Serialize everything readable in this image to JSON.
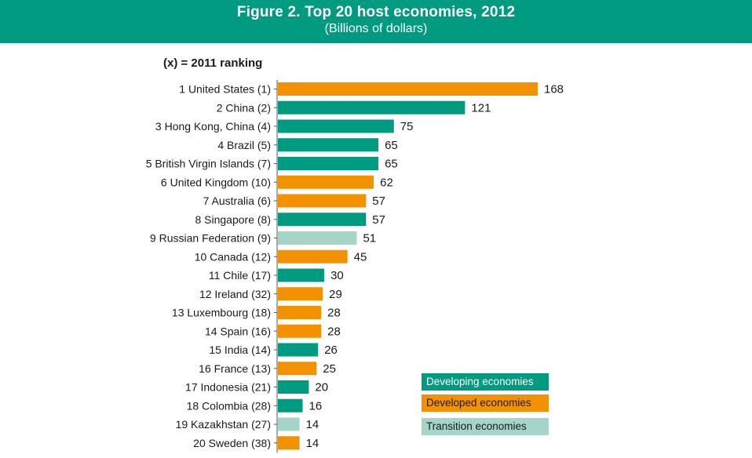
{
  "header": {
    "title": "Figure 2. Top 20 host economies, 2012",
    "subtitle": "(Billions of dollars)"
  },
  "note": "(x) = 2011  ranking",
  "legend": [
    {
      "label": "Developing economies",
      "color": "#009a80"
    },
    {
      "label": "Developed economies",
      "color": "#f39200"
    },
    {
      "label": "Transition economies",
      "color": "#a4d5c8"
    }
  ],
  "chart_data": {
    "type": "bar",
    "orientation": "horizontal",
    "title": "Figure 2. Top 20 host economies, 2012",
    "subtitle": "(Billions of dollars)",
    "xlim": [
      0,
      168
    ],
    "grid": false,
    "legend_position": "bottom-right",
    "colors": {
      "developing": "#009a80",
      "developed": "#f39200",
      "transition": "#a4d5c8"
    },
    "categories": [
      "1 United States (1)",
      "2 China (2)",
      "3 Hong Kong, China (4)",
      "4 Brazil (5)",
      "5 British Virgin Islands (7)",
      "6 United Kingdom (10)",
      "7 Australia (6)",
      "8 Singapore (8)",
      "9 Russian Federation (9)",
      "10 Canada (12)",
      "11 Chile (17)",
      "12 Ireland (32)",
      "13 Luxembourg (18)",
      "14 Spain (16)",
      "15 India (14)",
      "16 France (13)",
      "17 Indonesia (21)",
      "18 Colombia (28)",
      "19 Kazakhstan (27)",
      "20 Sweden (38)"
    ],
    "values": [
      168,
      121,
      75,
      65,
      65,
      62,
      57,
      57,
      51,
      45,
      30,
      29,
      28,
      28,
      26,
      25,
      20,
      16,
      14,
      14
    ],
    "groups": [
      "developed",
      "developing",
      "developing",
      "developing",
      "developing",
      "developed",
      "developed",
      "developing",
      "transition",
      "developed",
      "developing",
      "developed",
      "developed",
      "developed",
      "developing",
      "developed",
      "developing",
      "developing",
      "transition",
      "developed"
    ]
  }
}
